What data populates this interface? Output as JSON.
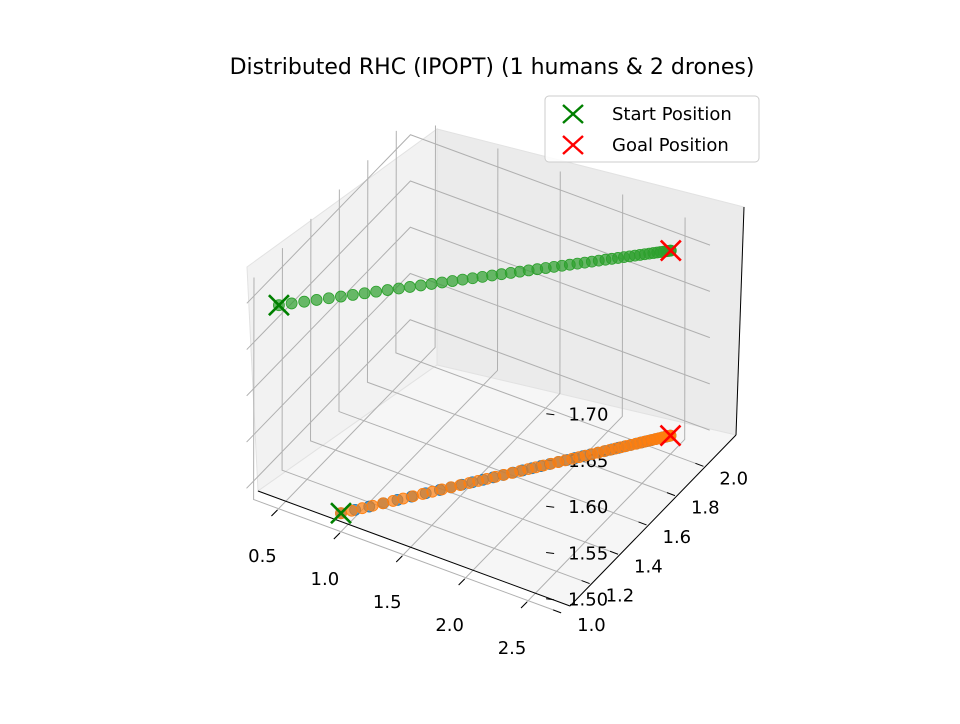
{
  "chart_data": {
    "type": "scatter",
    "projection": "3d",
    "title": "Distributed RHC (IPOPT) (1 humans & 2 drones)",
    "xlabel": "",
    "ylabel": "",
    "zlabel": "",
    "xlim": [
      0.3,
      2.7
    ],
    "ylim": [
      0.95,
      2.1
    ],
    "zlim": [
      1.48,
      1.72
    ],
    "x_ticks": [
      "0.5",
      "1.0",
      "1.5",
      "2.0",
      "2.5"
    ],
    "y_ticks": [
      "1.0",
      "1.2",
      "1.4",
      "1.6",
      "1.8",
      "2.0"
    ],
    "z_ticks": [
      "1.50",
      "1.55",
      "1.60",
      "1.65",
      "1.70"
    ],
    "grid": true,
    "legend": {
      "placement": "top-right",
      "entries": [
        {
          "label": "Start Position",
          "marker": "x",
          "color": "#008000"
        },
        {
          "label": "Goal Position",
          "marker": "x",
          "color": "#ff0000"
        }
      ]
    },
    "series": [
      {
        "color": "#1f77b4",
        "start": [
          1.0,
          1.0,
          1.5
        ],
        "goal": [
          2.5,
          2.0,
          1.5
        ],
        "elbow": [
          1.45,
          1.3,
          1.5
        ],
        "points_leg1": 8,
        "points_leg2": 34
      },
      {
        "color": "#ff7f0e",
        "start": [
          1.0,
          1.0,
          1.5
        ],
        "goal": [
          2.5,
          2.0,
          1.5
        ],
        "points": 50
      },
      {
        "color": "#2ca02c",
        "start": [
          0.5,
          1.0,
          1.7
        ],
        "goal": [
          2.5,
          2.0,
          1.7
        ],
        "points": 50
      }
    ]
  }
}
